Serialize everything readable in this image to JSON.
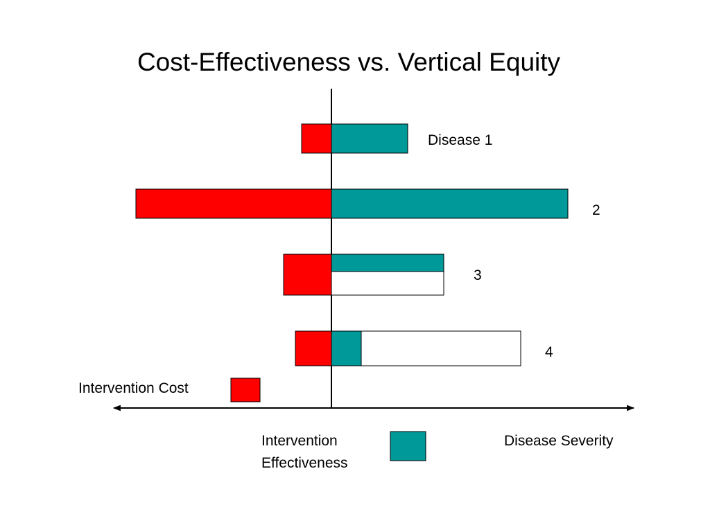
{
  "title": "Cost-Effectiveness vs. Vertical Equity",
  "colors": {
    "cost": "#ff0000",
    "effectiveness": "#009999",
    "severity": "#ffffff",
    "outline": "#000000"
  },
  "diseases": [
    {
      "label": "Disease 1",
      "cost": 43,
      "effectiveness": 110,
      "severity": 110
    },
    {
      "label": "2",
      "cost": 282,
      "effectiveness": 341,
      "severity": 341
    },
    {
      "label": "3",
      "cost": 69,
      "effectiveness": 162,
      "severity": 162
    },
    {
      "label": "4",
      "cost": 52,
      "effectiveness": 43,
      "severity": 273
    }
  ],
  "legend": {
    "cost_label": "Intervention Cost",
    "effectiveness_label_line1": "Intervention",
    "effectiveness_label_line2": "Effectiveness",
    "severity_label": "Disease Severity"
  }
}
